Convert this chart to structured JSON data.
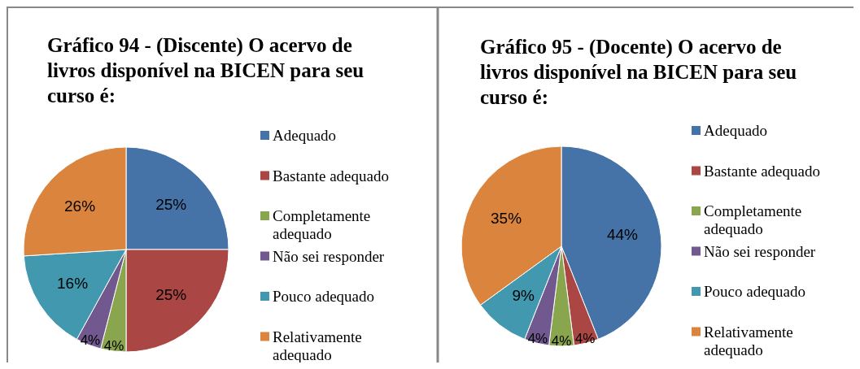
{
  "chart_data": [
    {
      "type": "pie",
      "title": "Gráfico 94 - (Discente) O acervo de livros disponível na BICEN para seu curso é:",
      "categories": [
        "Adequado",
        "Bastante adequado",
        "Completamente adequado",
        "Não sei responder",
        "Pouco adequado",
        "Relativamente adequado"
      ],
      "values": [
        25,
        25,
        4,
        4,
        16,
        26
      ],
      "value_labels": [
        "25%",
        "25%",
        "4%",
        "4%",
        "16%",
        "26%"
      ],
      "colors": [
        "#4572a7",
        "#aa4643",
        "#89a54e",
        "#71588f",
        "#4198af",
        "#db843d"
      ],
      "legend": "right"
    },
    {
      "type": "pie",
      "title": "Gráfico 95 - (Docente) O acervo de livros disponível na BICEN para seu curso é:",
      "categories": [
        "Adequado",
        "Bastante adequado",
        "Completamente adequado",
        "Não sei responder",
        "Pouco adequado",
        "Relativamente adequado"
      ],
      "values": [
        44,
        4,
        4,
        4,
        9,
        35
      ],
      "value_labels": [
        "44%",
        "4%",
        "4%",
        "4%",
        "9%",
        "35%"
      ],
      "colors": [
        "#4572a7",
        "#aa4643",
        "#89a54e",
        "#71588f",
        "#4198af",
        "#db843d"
      ],
      "legend": "right"
    }
  ]
}
